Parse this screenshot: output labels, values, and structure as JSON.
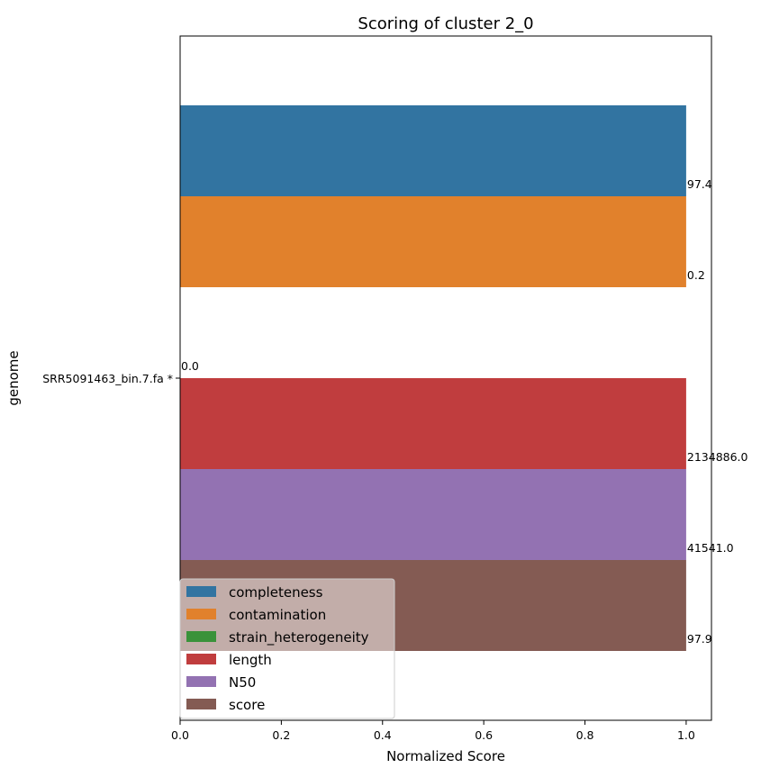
{
  "chart_data": {
    "type": "bar",
    "orientation": "horizontal",
    "title": "Scoring of cluster 2_0",
    "xlabel": "Normalized Score",
    "ylabel": "genome",
    "xlim": [
      0,
      1.05
    ],
    "xticks": [
      "0.0",
      "0.2",
      "0.4",
      "0.6",
      "0.8",
      "1.0"
    ],
    "categories": [
      "SRR5091463_bin.7.fa *"
    ],
    "grid": false,
    "legend_position": "lower-left",
    "series": [
      {
        "name": "completeness",
        "color": "#3274a1",
        "values": [
          1.0
        ],
        "label": "97.4"
      },
      {
        "name": "contamination",
        "color": "#e1812c",
        "values": [
          1.0
        ],
        "label": "0.2"
      },
      {
        "name": "strain_heterogeneity",
        "color": "#3a923a",
        "values": [
          0.0
        ],
        "label": "0.0"
      },
      {
        "name": "length",
        "color": "#c03d3e",
        "values": [
          1.0
        ],
        "label": "2134886.0"
      },
      {
        "name": "N50",
        "color": "#9372b2",
        "values": [
          1.0
        ],
        "label": "41541.0"
      },
      {
        "name": "score",
        "color": "#845b53",
        "values": [
          1.0
        ],
        "label": "97.9"
      }
    ]
  }
}
